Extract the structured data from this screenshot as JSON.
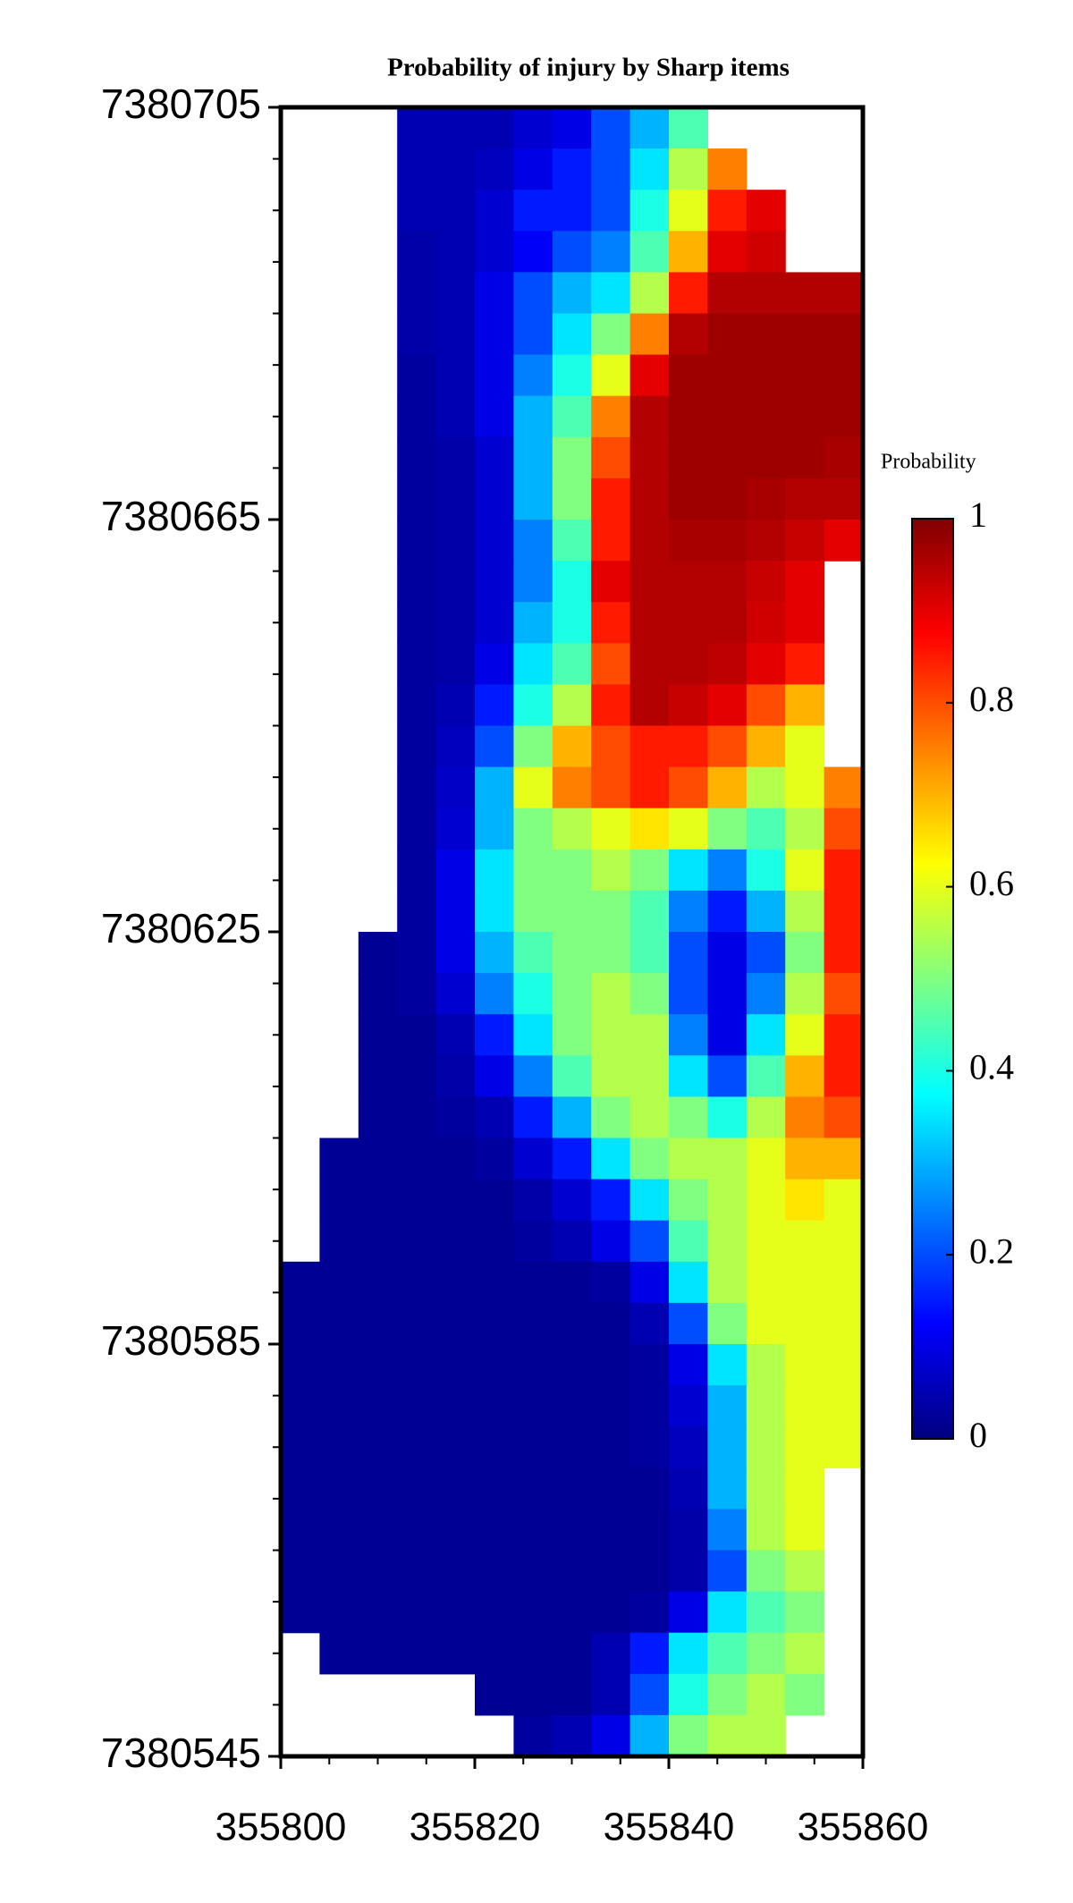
{
  "chart_data": {
    "type": "heatmap",
    "title": "Probability of injury by Sharp items",
    "colorbar_label": "Probability",
    "colormap": "jet",
    "xlim": [
      355800,
      355860
    ],
    "ylim": [
      7380545,
      7380705
    ],
    "xticks": [
      355800,
      355820,
      355840,
      355860
    ],
    "yticks": [
      7380545,
      7380585,
      7380625,
      7380665,
      7380705
    ],
    "xminorticks": [
      355805,
      355810,
      355815,
      355825,
      355830,
      355835,
      355845,
      355850,
      355855
    ],
    "yminorticks": [
      7380550,
      7380555,
      7380560,
      7380565,
      7380570,
      7380575,
      7380580,
      7380590,
      7380595,
      7380600,
      7380605,
      7380610,
      7380615,
      7380620,
      7380630,
      7380635,
      7380640,
      7380645,
      7380650,
      7380655,
      7380660,
      7380670,
      7380675,
      7380680,
      7380685,
      7380690,
      7380695,
      7380700
    ],
    "zlim": [
      0,
      1
    ],
    "zticks": [
      0,
      0.2,
      0.4,
      0.6,
      0.8,
      1
    ],
    "x": [
      355802,
      355806,
      355810,
      355814,
      355818,
      355822,
      355826,
      355830,
      355834,
      355838,
      355842,
      355846,
      355850,
      355854,
      355858
    ],
    "y": [
      7380703,
      7380699,
      7380695,
      7380691,
      7380687,
      7380683,
      7380679,
      7380675,
      7380671,
      7380667,
      7380663,
      7380659,
      7380655,
      7380651,
      7380647,
      7380643,
      7380639,
      7380635,
      7380631,
      7380627,
      7380623,
      7380619,
      7380615,
      7380611,
      7380607,
      7380603,
      7380599,
      7380595,
      7380591,
      7380587,
      7380583,
      7380579,
      7380575,
      7380571,
      7380567,
      7380563,
      7380559,
      7380555,
      7380551,
      7380547
    ],
    "z": [
      [
        null,
        null,
        null,
        0.05,
        0.05,
        0.05,
        0.08,
        0.1,
        0.2,
        0.3,
        0.45,
        null,
        null,
        null,
        null
      ],
      [
        null,
        null,
        null,
        0.05,
        0.05,
        0.06,
        0.1,
        0.15,
        0.2,
        0.35,
        0.55,
        0.75,
        null,
        null,
        null
      ],
      [
        null,
        null,
        null,
        0.05,
        0.05,
        0.08,
        0.15,
        0.15,
        0.2,
        0.4,
        0.6,
        0.85,
        0.9,
        null,
        null
      ],
      [
        null,
        null,
        null,
        0.04,
        0.05,
        0.08,
        0.12,
        0.2,
        0.25,
        0.45,
        0.7,
        0.9,
        0.92,
        null,
        null
      ],
      [
        null,
        null,
        null,
        0.04,
        0.05,
        0.1,
        0.2,
        0.3,
        0.35,
        0.55,
        0.85,
        0.95,
        0.95,
        0.95,
        0.95
      ],
      [
        null,
        null,
        null,
        0.04,
        0.05,
        0.1,
        0.2,
        0.35,
        0.5,
        0.75,
        0.95,
        0.97,
        0.97,
        0.97,
        0.97
      ],
      [
        null,
        null,
        null,
        0.03,
        0.05,
        0.1,
        0.25,
        0.4,
        0.6,
        0.9,
        0.97,
        0.97,
        0.97,
        0.97,
        0.97
      ],
      [
        null,
        null,
        null,
        0.03,
        0.05,
        0.1,
        0.3,
        0.45,
        0.75,
        0.95,
        0.97,
        0.97,
        0.97,
        0.97,
        0.97
      ],
      [
        null,
        null,
        null,
        0.03,
        0.04,
        0.08,
        0.3,
        0.5,
        0.8,
        0.95,
        0.97,
        0.97,
        0.97,
        0.97,
        0.96
      ],
      [
        null,
        null,
        null,
        0.03,
        0.04,
        0.08,
        0.3,
        0.5,
        0.85,
        0.95,
        0.97,
        0.97,
        0.96,
        0.95,
        0.95
      ],
      [
        null,
        null,
        null,
        0.03,
        0.04,
        0.08,
        0.25,
        0.45,
        0.85,
        0.95,
        0.96,
        0.96,
        0.95,
        0.93,
        0.9
      ],
      [
        null,
        null,
        null,
        0.03,
        0.04,
        0.08,
        0.25,
        0.4,
        0.9,
        0.95,
        0.95,
        0.95,
        0.93,
        0.9,
        null
      ],
      [
        null,
        null,
        null,
        0.03,
        0.04,
        0.08,
        0.3,
        0.4,
        0.85,
        0.95,
        0.95,
        0.95,
        0.92,
        0.9,
        null
      ],
      [
        null,
        null,
        null,
        0.03,
        0.04,
        0.1,
        0.35,
        0.45,
        0.8,
        0.95,
        0.95,
        0.94,
        0.9,
        0.85,
        null
      ],
      [
        null,
        null,
        null,
        0.03,
        0.05,
        0.15,
        0.4,
        0.55,
        0.85,
        0.95,
        0.93,
        0.9,
        0.8,
        0.7,
        null
      ],
      [
        null,
        null,
        null,
        0.03,
        0.06,
        0.2,
        0.5,
        0.7,
        0.8,
        0.85,
        0.85,
        0.8,
        0.7,
        0.6,
        null
      ],
      [
        null,
        null,
        null,
        0.03,
        0.07,
        0.3,
        0.6,
        0.75,
        0.8,
        0.85,
        0.8,
        0.7,
        0.55,
        0.6,
        0.75
      ],
      [
        null,
        null,
        null,
        0.03,
        0.08,
        0.3,
        0.5,
        0.55,
        0.6,
        0.65,
        0.6,
        0.5,
        0.45,
        0.55,
        0.8
      ],
      [
        null,
        null,
        null,
        0.03,
        0.1,
        0.35,
        0.5,
        0.5,
        0.55,
        0.5,
        0.35,
        0.25,
        0.4,
        0.6,
        0.85
      ],
      [
        null,
        null,
        null,
        0.03,
        0.1,
        0.35,
        0.5,
        0.5,
        0.5,
        0.45,
        0.25,
        0.15,
        0.3,
        0.55,
        0.85
      ],
      [
        null,
        null,
        0.02,
        0.03,
        0.1,
        0.3,
        0.45,
        0.5,
        0.5,
        0.45,
        0.2,
        0.1,
        0.2,
        0.5,
        0.85
      ],
      [
        null,
        null,
        0.02,
        0.03,
        0.08,
        0.25,
        0.4,
        0.5,
        0.55,
        0.5,
        0.2,
        0.1,
        0.25,
        0.55,
        0.8
      ],
      [
        null,
        null,
        0.02,
        0.02,
        0.05,
        0.15,
        0.35,
        0.5,
        0.55,
        0.55,
        0.25,
        0.1,
        0.35,
        0.6,
        0.85
      ],
      [
        null,
        null,
        0.02,
        0.02,
        0.04,
        0.1,
        0.25,
        0.45,
        0.55,
        0.55,
        0.35,
        0.2,
        0.45,
        0.7,
        0.85
      ],
      [
        null,
        null,
        0.02,
        0.02,
        0.03,
        0.05,
        0.15,
        0.3,
        0.5,
        0.55,
        0.5,
        0.4,
        0.55,
        0.75,
        0.8
      ],
      [
        null,
        0.02,
        0.02,
        0.02,
        0.02,
        0.03,
        0.08,
        0.15,
        0.35,
        0.5,
        0.55,
        0.55,
        0.6,
        0.7,
        0.7
      ],
      [
        null,
        0.02,
        0.02,
        0.02,
        0.02,
        0.02,
        0.04,
        0.08,
        0.15,
        0.35,
        0.5,
        0.55,
        0.6,
        0.65,
        0.6
      ],
      [
        null,
        0.02,
        0.02,
        0.02,
        0.02,
        0.02,
        0.03,
        0.05,
        0.1,
        0.2,
        0.45,
        0.55,
        0.6,
        0.6,
        0.6
      ],
      [
        0.02,
        0.02,
        0.02,
        0.02,
        0.02,
        0.02,
        0.02,
        0.02,
        0.03,
        0.1,
        0.35,
        0.55,
        0.6,
        0.6,
        0.6
      ],
      [
        0.02,
        0.02,
        0.02,
        0.02,
        0.02,
        0.02,
        0.02,
        0.02,
        0.02,
        0.05,
        0.2,
        0.5,
        0.6,
        0.6,
        0.6
      ],
      [
        0.02,
        0.02,
        0.02,
        0.02,
        0.02,
        0.02,
        0.02,
        0.02,
        0.02,
        0.03,
        0.1,
        0.35,
        0.55,
        0.6,
        0.6
      ],
      [
        0.02,
        0.02,
        0.02,
        0.02,
        0.02,
        0.02,
        0.02,
        0.02,
        0.02,
        0.03,
        0.08,
        0.3,
        0.55,
        0.6,
        0.6
      ],
      [
        0.02,
        0.02,
        0.02,
        0.02,
        0.02,
        0.02,
        0.02,
        0.02,
        0.02,
        0.03,
        0.06,
        0.3,
        0.55,
        0.6,
        0.6
      ],
      [
        0.02,
        0.02,
        0.02,
        0.02,
        0.02,
        0.02,
        0.02,
        0.02,
        0.02,
        0.02,
        0.05,
        0.3,
        0.55,
        0.6,
        null
      ],
      [
        0.02,
        0.02,
        0.02,
        0.02,
        0.02,
        0.02,
        0.02,
        0.02,
        0.02,
        0.02,
        0.04,
        0.25,
        0.55,
        0.6,
        null
      ],
      [
        0.02,
        0.02,
        0.02,
        0.02,
        0.02,
        0.02,
        0.02,
        0.02,
        0.02,
        0.02,
        0.04,
        0.2,
        0.5,
        0.55,
        null
      ],
      [
        0.02,
        0.02,
        0.02,
        0.02,
        0.02,
        0.02,
        0.02,
        0.02,
        0.02,
        0.03,
        0.1,
        0.35,
        0.45,
        0.5,
        null
      ],
      [
        null,
        0.02,
        0.02,
        0.02,
        0.02,
        0.02,
        0.02,
        0.02,
        0.05,
        0.15,
        0.35,
        0.45,
        0.5,
        0.55,
        null
      ],
      [
        null,
        null,
        null,
        null,
        null,
        0.02,
        0.02,
        0.02,
        0.05,
        0.2,
        0.4,
        0.5,
        0.55,
        0.5,
        null
      ],
      [
        null,
        null,
        null,
        null,
        null,
        null,
        0.03,
        0.05,
        0.1,
        0.3,
        0.5,
        0.55,
        0.55,
        null,
        null
      ]
    ]
  }
}
